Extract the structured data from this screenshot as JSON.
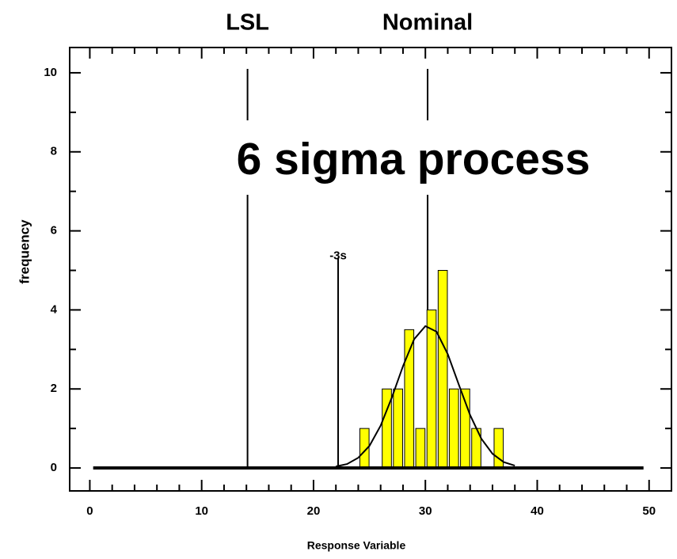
{
  "chart_data": {
    "type": "histogram",
    "x_label": "Response Variable",
    "y_label": "frequency",
    "annotation": "6 sigma process",
    "bins": [
      24,
      25,
      26,
      27,
      28,
      29,
      30,
      31,
      32,
      33,
      34,
      35,
      36,
      37
    ],
    "counts": [
      1,
      0,
      2,
      2,
      3.5,
      1,
      4,
      5,
      2,
      2,
      1,
      0,
      1
    ],
    "color": "#ffff00",
    "curve": {
      "x": [
        22,
        23,
        24,
        25,
        26,
        27,
        28,
        29,
        30,
        31,
        32,
        33,
        34,
        35,
        36,
        37,
        38
      ],
      "y": [
        0.04,
        0.1,
        0.26,
        0.56,
        1.07,
        1.78,
        2.58,
        3.26,
        3.59,
        3.45,
        2.88,
        2.1,
        1.34,
        0.74,
        0.36,
        0.15,
        0.06
      ]
    },
    "baseline_range": [
      0.3,
      49.5
    ],
    "reference_lines": [
      {
        "label": "LSL",
        "x": 14.1,
        "y_top": 10.1,
        "label_position": "top"
      },
      {
        "label": "Nominal",
        "x": 30.2,
        "y_top": 10.1,
        "label_position": "top"
      },
      {
        "label": "-3s",
        "x": 22.2,
        "y_top": 5.3,
        "label_position": "inside"
      }
    ],
    "xlim": [
      -1.8,
      52
    ],
    "ylim": [
      -0.58,
      10.64
    ],
    "xticks": [
      0,
      10,
      20,
      30,
      40,
      50
    ],
    "yticks": [
      0,
      2,
      4,
      6,
      8,
      10
    ],
    "xminorticks": [
      2,
      4,
      6,
      8,
      12,
      14,
      16,
      18,
      22,
      24,
      26,
      28,
      32,
      34,
      36,
      38,
      42,
      44,
      46,
      48
    ],
    "yminorticks": [
      1,
      3,
      5,
      7,
      9
    ]
  }
}
